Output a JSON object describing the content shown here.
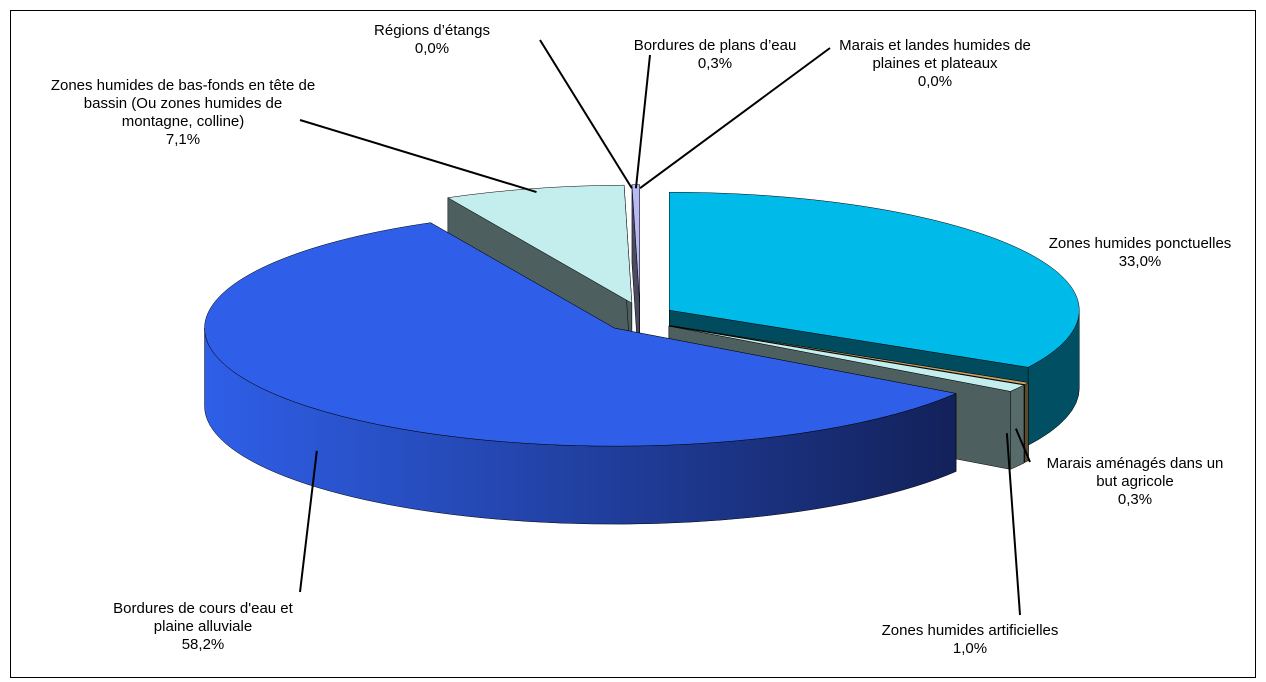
{
  "chart_data": {
    "type": "pie3d",
    "categories": [
      "Zones humides ponctuelles",
      "Marais aménagés dans un but agricole",
      "Zones humides artificielles",
      "Bordures de cours d'eau et plaine alluviale",
      "Zones humides de bas-fonds en tête de bassin (Ou zones humides de montagne, colline)",
      "Régions d’étangs",
      "Bordures de plans d’eau",
      "Marais et landes humides de plaines et plateaux"
    ],
    "values": [
      33.0,
      0.3,
      1.0,
      58.2,
      7.1,
      0.0,
      0.3,
      0.0
    ],
    "value_labels": [
      "33,0%",
      "0,3%",
      "1,0%",
      "58,2%",
      "7,1%",
      "0,0%",
      "0,3%",
      "0,0%"
    ],
    "colors": [
      "#00bbea",
      "#c9a46a",
      "#c4eeee",
      "#2f5fe8",
      "#c4eeee",
      "#7d7de0",
      "#b8b8f2",
      "#3a5aa0"
    ]
  }
}
